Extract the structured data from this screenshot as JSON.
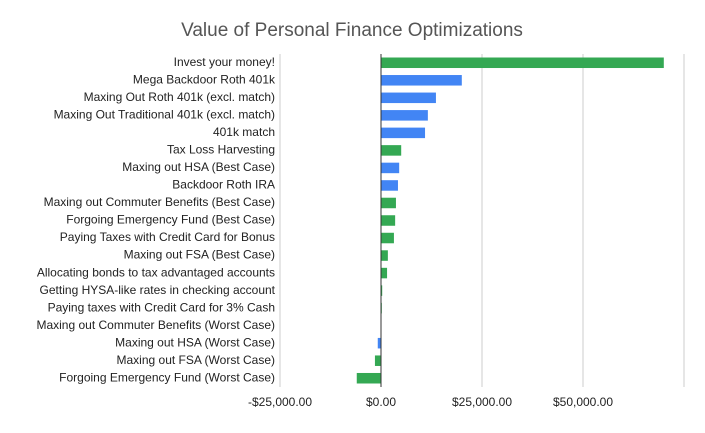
{
  "chart_data": {
    "type": "hbar",
    "title": "Value of Personal Finance Optimizations",
    "categories": [
      "Invest your money!",
      "Mega Backdoor Roth 401k",
      "Maxing Out Roth 401k (excl. match)",
      "Maxing Out Traditional 401k (excl. match)",
      "401k match",
      "Tax Loss Harvesting",
      "Maxing out HSA (Best Case)",
      "Backdoor Roth IRA",
      "Maxing out Commuter Benefits (Best Case)",
      "Forgoing Emergency Fund (Best Case)",
      "Paying Taxes with Credit Card for Bonus",
      "Maxing out FSA (Best Case)",
      "Allocating bonds to tax advantaged accounts",
      "Getting HYSA-like rates in checking account",
      "Paying taxes with Credit Card for 3% Cash",
      "Maxing out Commuter Benefits (Worst Case)",
      "Maxing out HSA (Worst Case)",
      "Maxing out FSA (Worst Case)",
      "Forgoing Emergency Fund (Worst Case)"
    ],
    "values": [
      70000,
      20000,
      13600,
      11600,
      10900,
      5000,
      4500,
      4200,
      3700,
      3500,
      3200,
      1700,
      1500,
      300,
      200,
      100,
      -800,
      -1500,
      -6000
    ],
    "colors": [
      "#34a853",
      "#4285f4",
      "#4285f4",
      "#4285f4",
      "#4285f4",
      "#34a853",
      "#4285f4",
      "#4285f4",
      "#34a853",
      "#34a853",
      "#34a853",
      "#34a853",
      "#34a853",
      "#34a853",
      "#34a853",
      "#34a853",
      "#4285f4",
      "#34a853",
      "#34a853"
    ],
    "xlim": [
      -25000,
      75000
    ],
    "xticks": [
      {
        "value": -25000,
        "label": "-$25,000.00"
      },
      {
        "value": 0,
        "label": "$0.00"
      },
      {
        "value": 25000,
        "label": "$25,000.00"
      },
      {
        "value": 50000,
        "label": "$50,000.00"
      }
    ],
    "grid": true
  }
}
